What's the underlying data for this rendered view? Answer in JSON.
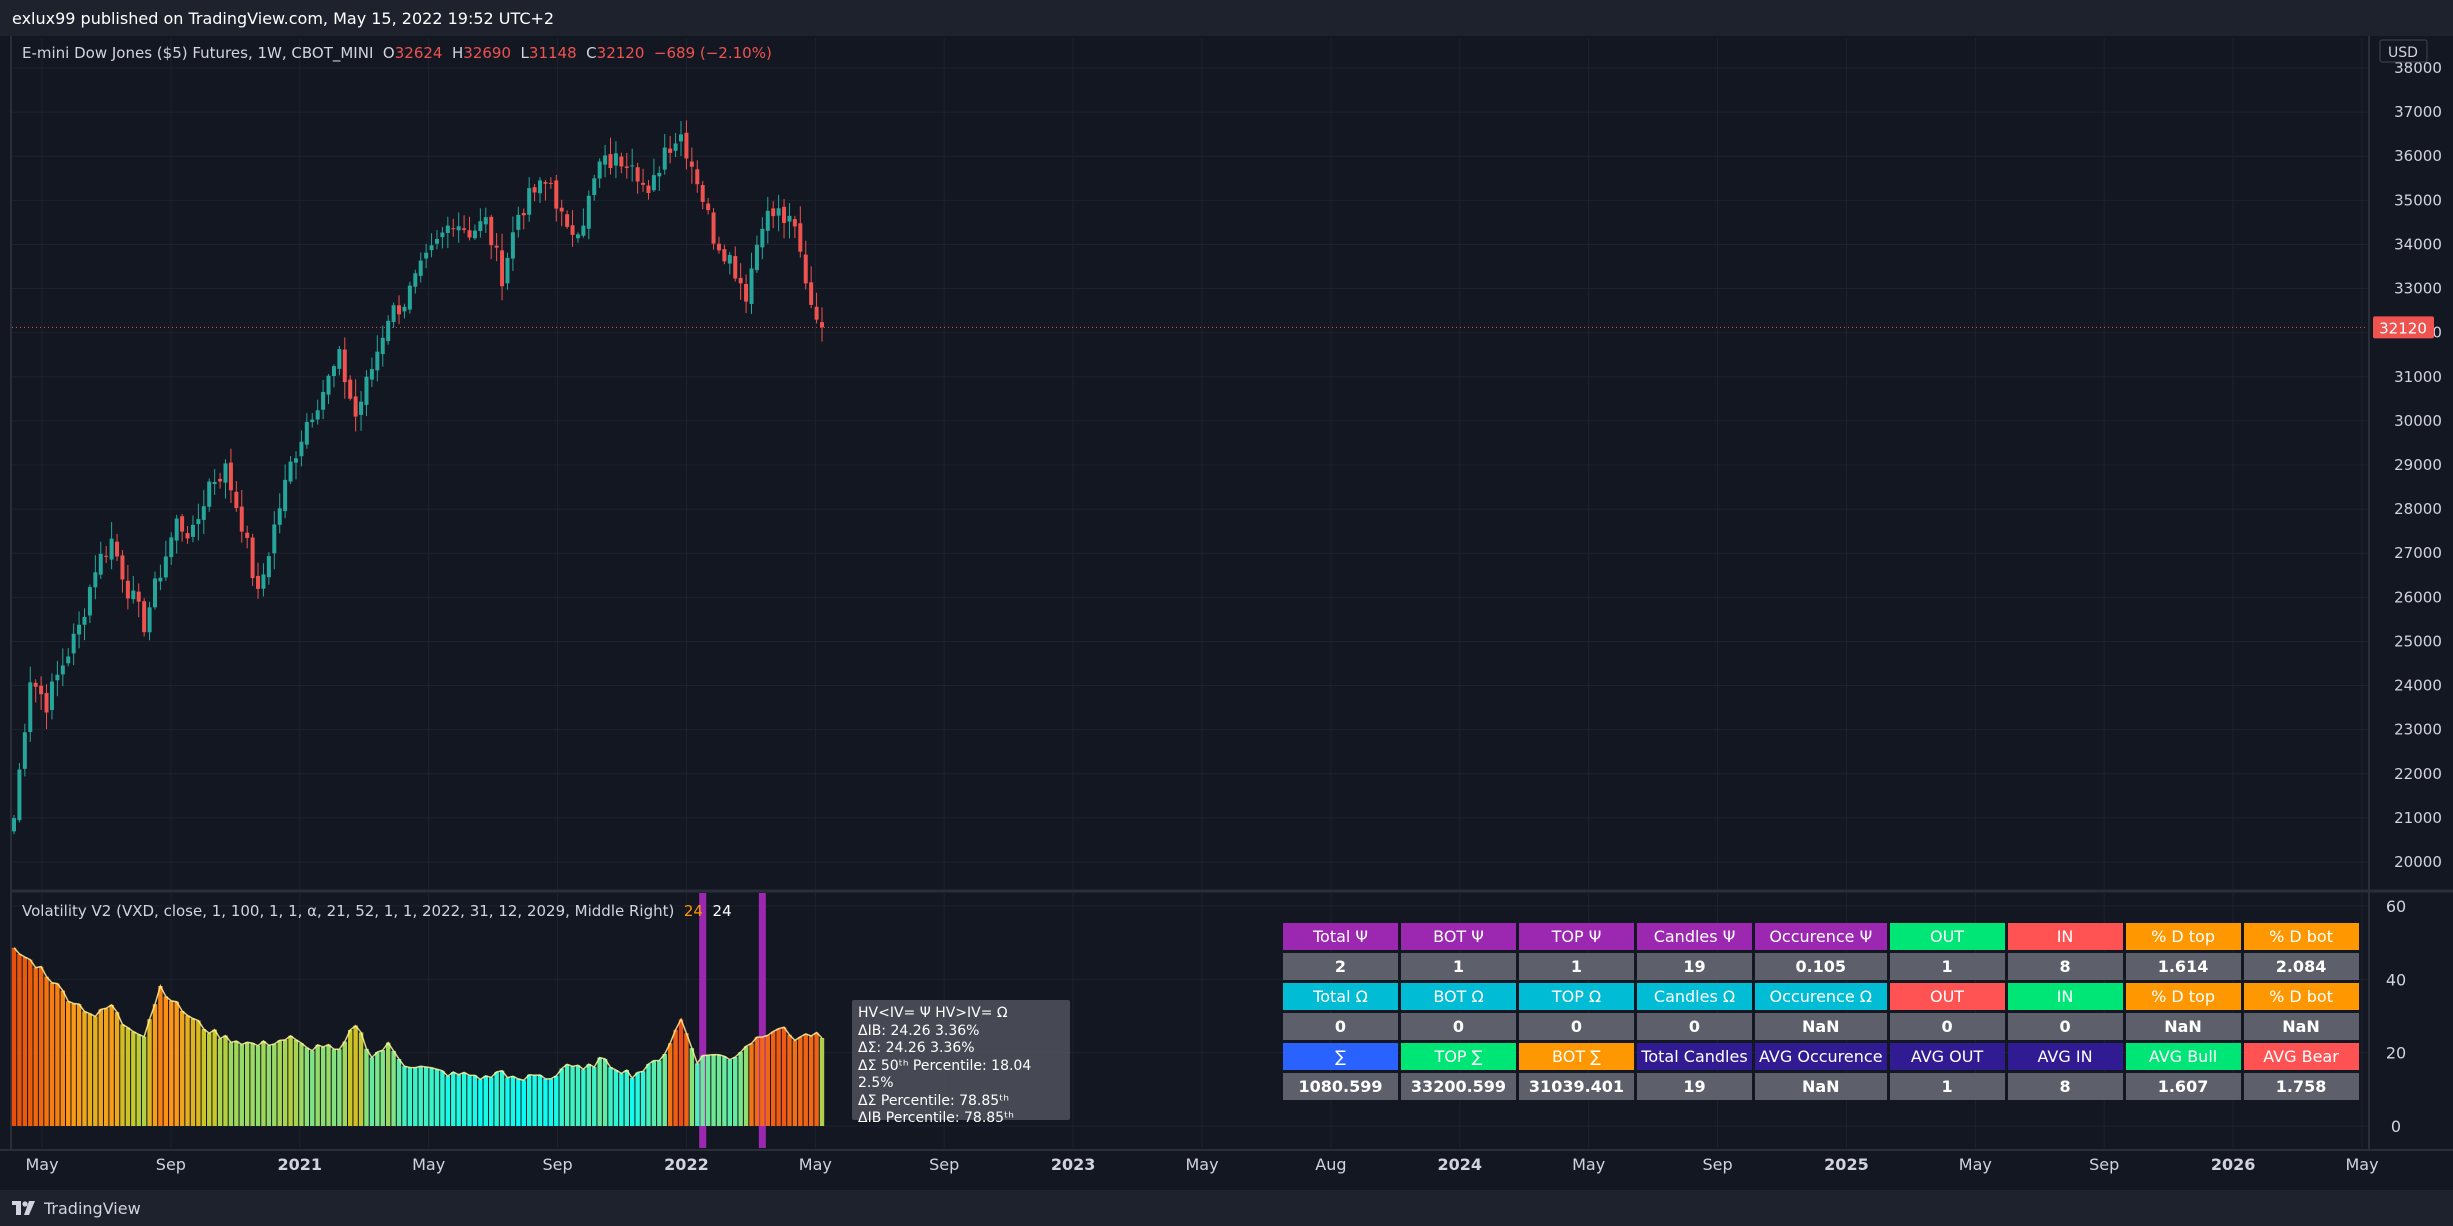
{
  "topbar": {
    "text": "exlux99 published on TradingView.com, May 15, 2022 19:52 UTC+2"
  },
  "symbol_legend": {
    "title": "E-mini Dow Jones ($5) Futures, 1W, CBOT_MINI",
    "open_label": "O",
    "open": "32624",
    "high_label": "H",
    "high": "32690",
    "low_label": "L",
    "low": "31148",
    "close_label": "C",
    "close": "32120",
    "change": "−689 (−2.10%)"
  },
  "currency": "USD",
  "last_price": "32120",
  "indicator_legend": {
    "title": "Volatility V2 (VXD, close, 1, 100, 1, 1, α, 21, 52, 1, 1, 2022, 31, 12, 2029, Middle Right)",
    "value1": "24",
    "value2": "24"
  },
  "footer": {
    "brand": "TradingView"
  },
  "colors": {
    "background": "#131722",
    "bull": "#26a69a",
    "bear": "#ef5350",
    "grid": "#1e222d",
    "purple": "#9c27b0",
    "cyan": "#00bcd4",
    "green": "#00e676",
    "red": "#ff5252",
    "orange": "#ff9800",
    "blue": "#2962ff",
    "navy": "#311b92"
  },
  "tooltip": {
    "line1": "HV<IV= Ψ  HV>IV= Ω",
    "line2": "ΔIB: 24.26  3.36%",
    "line3": "ΔΣ: 24.26  3.36%",
    "line4": "ΔΣ 50ᵗʰ Percentile: 18.04  2.5%",
    "line5": "ΔΣ Percentile: 78.85ᵗʰ",
    "line6": "ΔIB Percentile: 78.85ᵗʰ"
  },
  "table": {
    "rows": [
      [
        {
          "text": "Total Ψ",
          "color": "#9c27b0"
        },
        {
          "text": "BOT Ψ",
          "color": "#9c27b0"
        },
        {
          "text": "TOP Ψ",
          "color": "#9c27b0"
        },
        {
          "text": "Candles Ψ",
          "color": "#9c27b0"
        },
        {
          "text": "Occurence Ψ",
          "color": "#9c27b0"
        },
        {
          "text": "OUT",
          "color": "#00e676"
        },
        {
          "text": "IN",
          "color": "#ff5252"
        },
        {
          "text": "% D top",
          "color": "#ff9800"
        },
        {
          "text": "% D bot",
          "color": "#ff9800"
        }
      ],
      [
        {
          "text": "2"
        },
        {
          "text": "1"
        },
        {
          "text": "1"
        },
        {
          "text": "19"
        },
        {
          "text": "0.105"
        },
        {
          "text": "1"
        },
        {
          "text": "8"
        },
        {
          "text": "1.614"
        },
        {
          "text": "2.084"
        }
      ],
      [
        {
          "text": "Total Ω",
          "color": "#00bcd4"
        },
        {
          "text": "BOT Ω",
          "color": "#00bcd4"
        },
        {
          "text": "TOP Ω",
          "color": "#00bcd4"
        },
        {
          "text": "Candles Ω",
          "color": "#00bcd4"
        },
        {
          "text": "Occurence Ω",
          "color": "#00bcd4"
        },
        {
          "text": "OUT",
          "color": "#ff5252"
        },
        {
          "text": "IN",
          "color": "#00e676"
        },
        {
          "text": "% D top",
          "color": "#ff9800"
        },
        {
          "text": "% D bot",
          "color": "#ff9800"
        }
      ],
      [
        {
          "text": "0"
        },
        {
          "text": "0"
        },
        {
          "text": "0"
        },
        {
          "text": "0"
        },
        {
          "text": "NaN"
        },
        {
          "text": "0"
        },
        {
          "text": "0"
        },
        {
          "text": "NaN"
        },
        {
          "text": "NaN"
        }
      ],
      [
        {
          "text": "∑",
          "color": "#2962ff"
        },
        {
          "text": "TOP ∑",
          "color": "#00e676"
        },
        {
          "text": "BOT ∑",
          "color": "#ff9800"
        },
        {
          "text": "Total Candles",
          "color": "#311b92"
        },
        {
          "text": "AVG Occurence",
          "color": "#311b92"
        },
        {
          "text": "AVG OUT",
          "color": "#311b92"
        },
        {
          "text": "AVG IN",
          "color": "#311b92"
        },
        {
          "text": "AVG Bull",
          "color": "#00e676"
        },
        {
          "text": "AVG Bear",
          "color": "#ff5252"
        }
      ],
      [
        {
          "text": "1080.599"
        },
        {
          "text": "33200.599"
        },
        {
          "text": "31039.401"
        },
        {
          "text": "19"
        },
        {
          "text": "NaN"
        },
        {
          "text": "1"
        },
        {
          "text": "8"
        },
        {
          "text": "1.607"
        },
        {
          "text": "1.758"
        }
      ]
    ]
  },
  "chart_data": [
    {
      "type": "candlestick",
      "title": "E-mini Dow Jones ($5) Futures, 1W, CBOT_MINI",
      "ylim": [
        19500,
        38200
      ],
      "yticks": [
        20000,
        21000,
        22000,
        23000,
        24000,
        25000,
        26000,
        27000,
        28000,
        29000,
        30000,
        31000,
        32000,
        33000,
        34000,
        35000,
        36000,
        37000,
        38000
      ],
      "ytick_labels": [
        "20000",
        "21000",
        "22000",
        "23000",
        "24000",
        "25000",
        "26000",
        "27000",
        "28000",
        "29000",
        "30000",
        "31000",
        "32000",
        "33000",
        "34000",
        "35000",
        "36000",
        "37000",
        "38000"
      ],
      "x_labels": [
        "May",
        "Sep",
        "2021",
        "May",
        "Sep",
        "2022",
        "May",
        "Sep",
        "2023",
        "May",
        "Aug",
        "2024",
        "May",
        "Sep",
        "2025",
        "May",
        "Sep",
        "2026",
        "May"
      ],
      "bold_x_labels": [
        "2021",
        "2022",
        "2023",
        "2024",
        "2025",
        "2026"
      ],
      "last_price": 32120,
      "close_path": [
        [
          0,
          21000
        ],
        [
          3,
          24200
        ],
        [
          6,
          23600
        ],
        [
          9,
          24500
        ],
        [
          12,
          25300
        ],
        [
          15,
          26700
        ],
        [
          18,
          27300
        ],
        [
          21,
          26200
        ],
        [
          24,
          25400
        ],
        [
          27,
          26600
        ],
        [
          30,
          27700
        ],
        [
          33,
          27400
        ],
        [
          36,
          28600
        ],
        [
          39,
          28900
        ],
        [
          42,
          27700
        ],
        [
          45,
          26000
        ],
        [
          48,
          27600
        ],
        [
          51,
          29000
        ],
        [
          54,
          30000
        ],
        [
          57,
          30700
        ],
        [
          60,
          31400
        ],
        [
          63,
          30100
        ],
        [
          66,
          31200
        ],
        [
          69,
          32400
        ],
        [
          72,
          32700
        ],
        [
          75,
          33400
        ],
        [
          78,
          34000
        ],
        [
          81,
          34600
        ],
        [
          84,
          34300
        ],
        [
          87,
          34500
        ],
        [
          90,
          33300
        ],
        [
          93,
          34700
        ],
        [
          96,
          35200
        ],
        [
          99,
          35400
        ],
        [
          102,
          34200
        ],
        [
          105,
          34600
        ],
        [
          108,
          35800
        ],
        [
          111,
          35900
        ],
        [
          114,
          36000
        ],
        [
          117,
          35000
        ],
        [
          120,
          36200
        ],
        [
          123,
          36500
        ],
        [
          126,
          35500
        ],
        [
          129,
          34200
        ],
        [
          132,
          33700
        ],
        [
          135,
          32900
        ],
        [
          138,
          34600
        ],
        [
          141,
          34700
        ],
        [
          144,
          34300
        ],
        [
          147,
          32700
        ],
        [
          150,
          32120
        ]
      ],
      "candle_count": 150
    },
    {
      "type": "bar",
      "title": "Volatility V2 (VXD, close, 1, 100, 1, 1, α, 21, 52, 1, 1, 2022, 31, 12, 2029, Middle Right)",
      "ylim": [
        -2,
        62
      ],
      "yticks": [
        0,
        20,
        40,
        60
      ],
      "ytick_labels": [
        "0",
        "20",
        "40",
        "60"
      ],
      "bar_count": 150,
      "values_path": [
        [
          0,
          48
        ],
        [
          5,
          43
        ],
        [
          10,
          35
        ],
        [
          15,
          30
        ],
        [
          18,
          33
        ],
        [
          20,
          28
        ],
        [
          24,
          25
        ],
        [
          27,
          38
        ],
        [
          30,
          33
        ],
        [
          33,
          29
        ],
        [
          36,
          26
        ],
        [
          39,
          24
        ],
        [
          42,
          23
        ],
        [
          45,
          22
        ],
        [
          48,
          23
        ],
        [
          51,
          24
        ],
        [
          54,
          21
        ],
        [
          57,
          22
        ],
        [
          60,
          20
        ],
        [
          63,
          28
        ],
        [
          66,
          19
        ],
        [
          69,
          22
        ],
        [
          72,
          17
        ],
        [
          75,
          16
        ],
        [
          78,
          15
        ],
        [
          81,
          14
        ],
        [
          84,
          14
        ],
        [
          87,
          13
        ],
        [
          90,
          15
        ],
        [
          93,
          12
        ],
        [
          96,
          14
        ],
        [
          99,
          13
        ],
        [
          102,
          17
        ],
        [
          105,
          15
        ],
        [
          108,
          18
        ],
        [
          111,
          16
        ],
        [
          114,
          14
        ],
        [
          117,
          16
        ],
        [
          120,
          20
        ],
        [
          123,
          29
        ],
        [
          126,
          18
        ],
        [
          129,
          20
        ],
        [
          132,
          18
        ],
        [
          135,
          22
        ],
        [
          138,
          25
        ],
        [
          141,
          27
        ],
        [
          144,
          24
        ],
        [
          147,
          25
        ],
        [
          149,
          24
        ]
      ],
      "highlight_bars": [
        127,
        138
      ],
      "last_value": 24
    }
  ]
}
